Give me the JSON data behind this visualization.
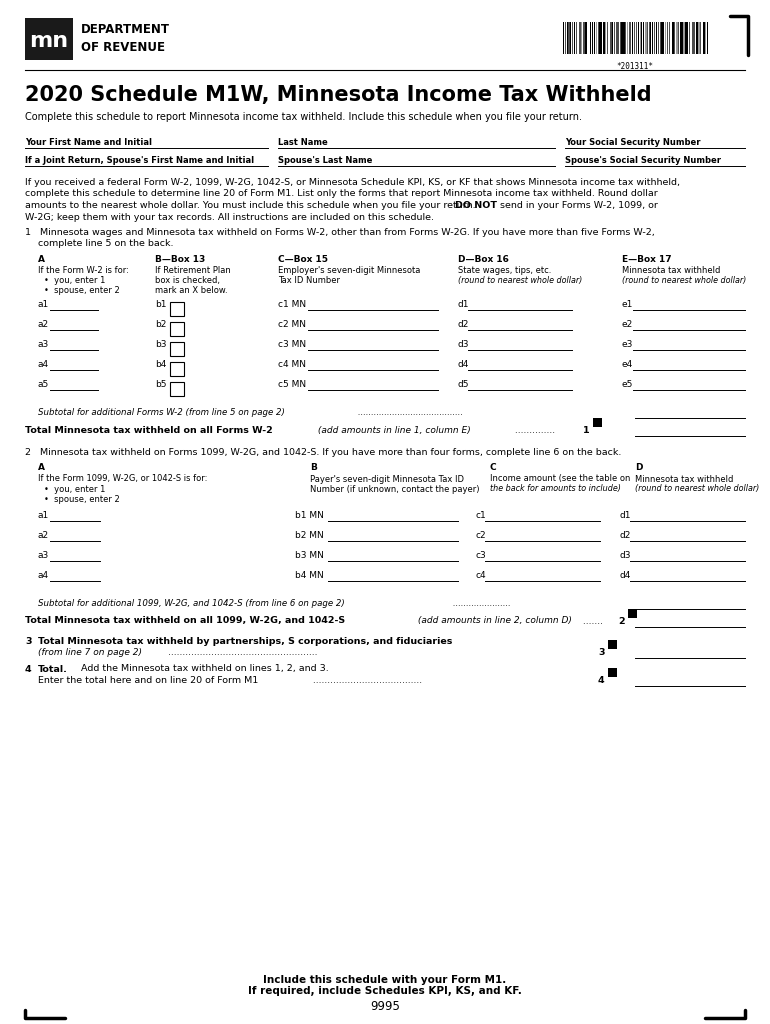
{
  "title": "2020 Schedule M1W, Minnesota Income Tax Withheld",
  "subtitle": "Complete this schedule to report Minnesota income tax withheld. Include this schedule when you file your return.",
  "bg_color": "#ffffff",
  "barcode_number": "*201311*",
  "footer_text1": "Include this schedule with your Form M1.",
  "footer_text2": "If required, include Schedules KPI, KS, and KF.",
  "footer_number": "9995"
}
